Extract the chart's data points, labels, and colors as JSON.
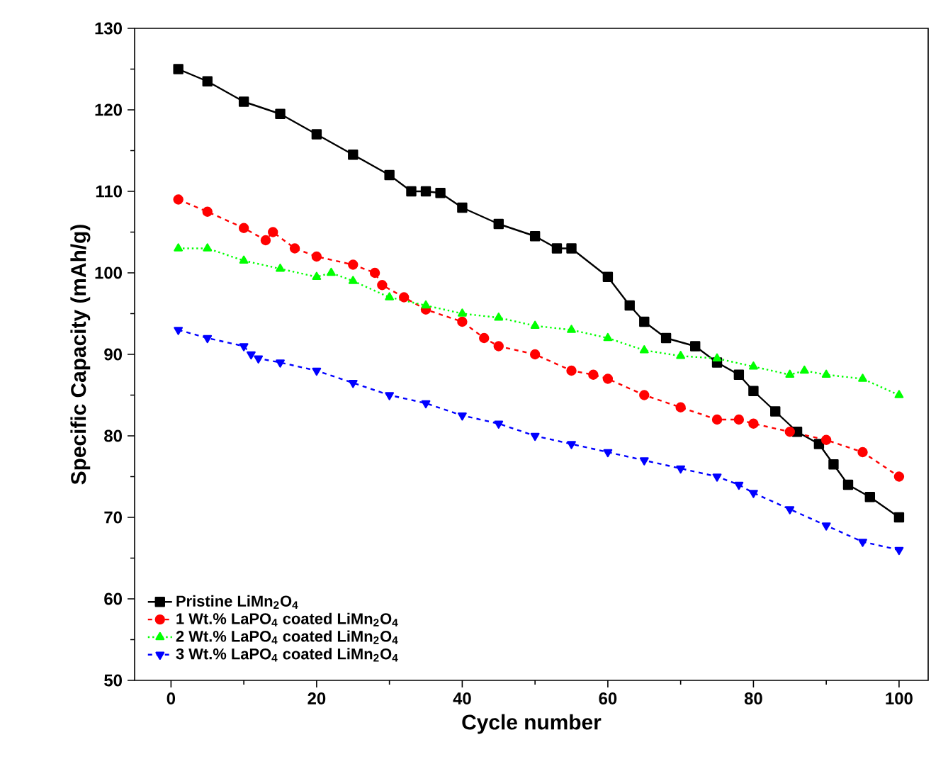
{
  "chart_data": {
    "type": "line",
    "xlabel": "Cycle number",
    "ylabel": "Specific Capacity (mAh/g)",
    "xlim": [
      -5,
      104
    ],
    "ylim": [
      50,
      130
    ],
    "xticks": [
      0,
      20,
      40,
      60,
      80,
      100
    ],
    "yticks": [
      50,
      60,
      70,
      80,
      90,
      100,
      110,
      120,
      130
    ],
    "grid": false,
    "legend": "bottom left",
    "series": [
      {
        "name": "Pristine LiMn$_{2}$O$_{4}$",
        "color": "#000000",
        "marker": "square",
        "line_style": "solid",
        "x": [
          1,
          5,
          10,
          15,
          20,
          25,
          30,
          33,
          35,
          37,
          40,
          45,
          50,
          53,
          55,
          60,
          63,
          65,
          68,
          72,
          75,
          78,
          80,
          83,
          86,
          89,
          91,
          93,
          96,
          100
        ],
        "values": [
          125,
          123.5,
          121,
          119.5,
          117,
          114.5,
          112,
          110,
          110,
          109.8,
          108,
          106,
          104.5,
          103,
          103,
          99.5,
          96,
          94,
          92,
          91,
          89,
          87.5,
          85.5,
          83,
          80.5,
          79,
          76.5,
          74,
          72.5,
          70
        ]
      },
      {
        "name": "1 Wt.% LaPO$_{4}$ coated LiMn$_{2}$O$_{4}$",
        "color": "#ff0000",
        "marker": "circle",
        "line_style": "dashed",
        "x": [
          1,
          5,
          10,
          13,
          14,
          17,
          20,
          25,
          28,
          29,
          32,
          35,
          40,
          43,
          45,
          50,
          55,
          58,
          60,
          65,
          70,
          75,
          78,
          80,
          85,
          90,
          95,
          100
        ],
        "values": [
          109,
          107.5,
          105.5,
          104,
          105,
          103,
          102,
          101,
          100,
          98.5,
          97,
          95.5,
          94,
          92,
          91,
          90,
          88,
          87.5,
          87,
          85,
          83.5,
          82,
          82,
          81.5,
          80.5,
          79.5,
          78,
          75
        ]
      },
      {
        "name": "2 Wt.% LaPO$_{4}$  coated LiMn$_{2}$O$_{4}$",
        "color": "#00ff00",
        "marker": "triangle",
        "line_style": "dotted",
        "x": [
          1,
          5,
          10,
          15,
          20,
          22,
          25,
          30,
          35,
          40,
          45,
          50,
          55,
          60,
          65,
          70,
          75,
          80,
          85,
          87,
          90,
          95,
          100
        ],
        "values": [
          103,
          103,
          101.5,
          100.5,
          99.5,
          100,
          99,
          97,
          96,
          95,
          94.5,
          93.5,
          93,
          92,
          90.5,
          89.8,
          89.5,
          88.5,
          87.5,
          88,
          87.5,
          87,
          85
        ]
      },
      {
        "name": "3 Wt.% LaPO$_{4}$  coated LiMn$_{2}$O$_{4}$",
        "color": "#0000ff",
        "marker": "triangle_down",
        "line_style": "dashed",
        "x": [
          1,
          5,
          10,
          11,
          12,
          15,
          20,
          25,
          30,
          35,
          40,
          45,
          50,
          55,
          60,
          65,
          70,
          75,
          78,
          80,
          85,
          90,
          95,
          100
        ],
        "values": [
          93,
          92,
          91,
          90,
          89.5,
          89,
          88,
          86.5,
          85,
          84,
          82.5,
          81.5,
          80,
          79,
          78,
          77,
          76,
          75,
          74,
          73,
          71,
          69,
          67,
          66
        ]
      }
    ]
  }
}
